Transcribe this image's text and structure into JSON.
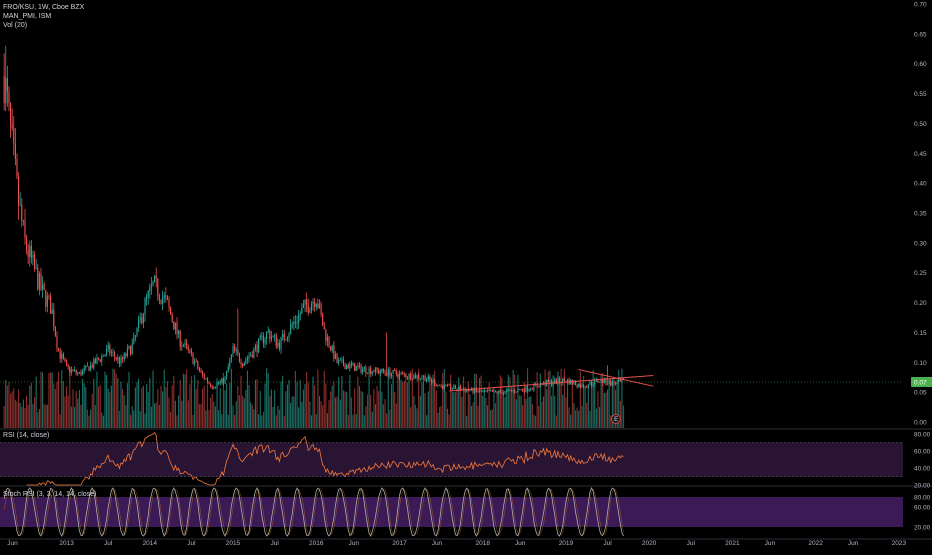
{
  "legend": {
    "symbol": "FRO/KSU, 1W, Cboe BZX",
    "study_1": "MAN_PMI, ISM",
    "study_2": "Vol (20)"
  },
  "rsi_label": "RSI (14, close)",
  "stoch_label": "Stoch RSI (3, 3, 14, 14, close)",
  "colors": {
    "background": "#000000",
    "up": "#26a69a",
    "down": "#ef5350",
    "vol_up": "#1b6f66",
    "vol_down": "#8a2f2d",
    "rsi_line": "#f5793a",
    "rsi_band": "#2a1433",
    "stoch_k": "#b0b0b0",
    "stoch_band": "#3b1a55",
    "trend_line": "#e35050",
    "price_line": "#4caf50"
  },
  "chart_data": [
    {
      "type": "candlestick",
      "title": "FRO/KSU, 1W, Cboe BZX",
      "ylim": [
        -0.01,
        0.7
      ],
      "y_ticks": [
        "0.70",
        "0.65",
        "0.60",
        "0.55",
        "0.50",
        "0.45",
        "0.40",
        "0.35",
        "0.30",
        "0.25",
        "0.20",
        "0.15",
        "0.10",
        "0.05",
        "0.00"
      ],
      "x_ticks": [
        "Jun",
        "2013",
        "Jul",
        "2014",
        "Jul",
        "2015",
        "Jul",
        "2016",
        "Jun",
        "2017",
        "Jun",
        "2018",
        "Jun",
        "2019",
        "Jul",
        "2020",
        "Jul",
        "2021",
        "Jun",
        "2022",
        "Jun",
        "2023"
      ],
      "last_price_label": "0.07",
      "last_price": 0.067,
      "data_start_year": 2012.25,
      "data_end_year": 2019.7,
      "axis_start_year": 2012.2,
      "axis_end_year": 2023.05,
      "close_anchors": [
        [
          2012.25,
          0.58
        ],
        [
          2012.33,
          0.48
        ],
        [
          2012.42,
          0.37
        ],
        [
          2012.5,
          0.3
        ],
        [
          2012.6,
          0.26
        ],
        [
          2012.7,
          0.22
        ],
        [
          2012.82,
          0.19
        ],
        [
          2012.9,
          0.12
        ],
        [
          2013.0,
          0.09
        ],
        [
          2013.15,
          0.08
        ],
        [
          2013.35,
          0.1
        ],
        [
          2013.5,
          0.12
        ],
        [
          2013.65,
          0.1
        ],
        [
          2013.8,
          0.13
        ],
        [
          2013.95,
          0.2
        ],
        [
          2014.05,
          0.23
        ],
        [
          2014.2,
          0.2
        ],
        [
          2014.35,
          0.14
        ],
        [
          2014.5,
          0.11
        ],
        [
          2014.62,
          0.08
        ],
        [
          2014.75,
          0.06
        ],
        [
          2014.9,
          0.07
        ],
        [
          2015.0,
          0.12
        ],
        [
          2015.12,
          0.1
        ],
        [
          2015.25,
          0.12
        ],
        [
          2015.42,
          0.15
        ],
        [
          2015.55,
          0.13
        ],
        [
          2015.7,
          0.16
        ],
        [
          2015.85,
          0.19
        ],
        [
          2016.0,
          0.21
        ],
        [
          2016.1,
          0.15
        ],
        [
          2016.25,
          0.1
        ],
        [
          2016.5,
          0.09
        ],
        [
          2016.75,
          0.085
        ],
        [
          2017.0,
          0.08
        ],
        [
          2017.3,
          0.075
        ],
        [
          2017.5,
          0.06
        ],
        [
          2017.75,
          0.055
        ],
        [
          2018.0,
          0.05
        ],
        [
          2018.25,
          0.05
        ],
        [
          2018.5,
          0.055
        ],
        [
          2018.75,
          0.065
        ],
        [
          2019.0,
          0.07
        ],
        [
          2019.2,
          0.06
        ],
        [
          2019.4,
          0.07
        ],
        [
          2019.55,
          0.065
        ],
        [
          2019.7,
          0.067
        ]
      ],
      "volume_range": [
        0,
        1
      ],
      "trend_lines": [
        {
          "from": [
            2017.6,
            0.052
          ],
          "to": [
            2020.05,
            0.078
          ]
        },
        {
          "from": [
            2019.15,
            0.088
          ],
          "to": [
            2020.05,
            0.06
          ]
        }
      ]
    },
    {
      "type": "line",
      "title": "RSI (14, close)",
      "ylim": [
        20,
        85
      ],
      "y_ticks": [
        "80.00",
        "60.00",
        "40.00",
        "20.00"
      ],
      "band": [
        30,
        70
      ],
      "levels": [
        30,
        70
      ],
      "start_year": 2012.25,
      "end_year": 2019.7
    },
    {
      "type": "line",
      "title": "Stoch RSI (3, 3, 14, 14, close)",
      "ylim": [
        0,
        100
      ],
      "y_ticks": [
        "80.00",
        "60.00",
        "20.00"
      ],
      "band": [
        20,
        80
      ],
      "start_year": 2012.25,
      "end_year": 2019.7
    }
  ],
  "marker_icon": "earnings-icon",
  "marker_label": "E"
}
